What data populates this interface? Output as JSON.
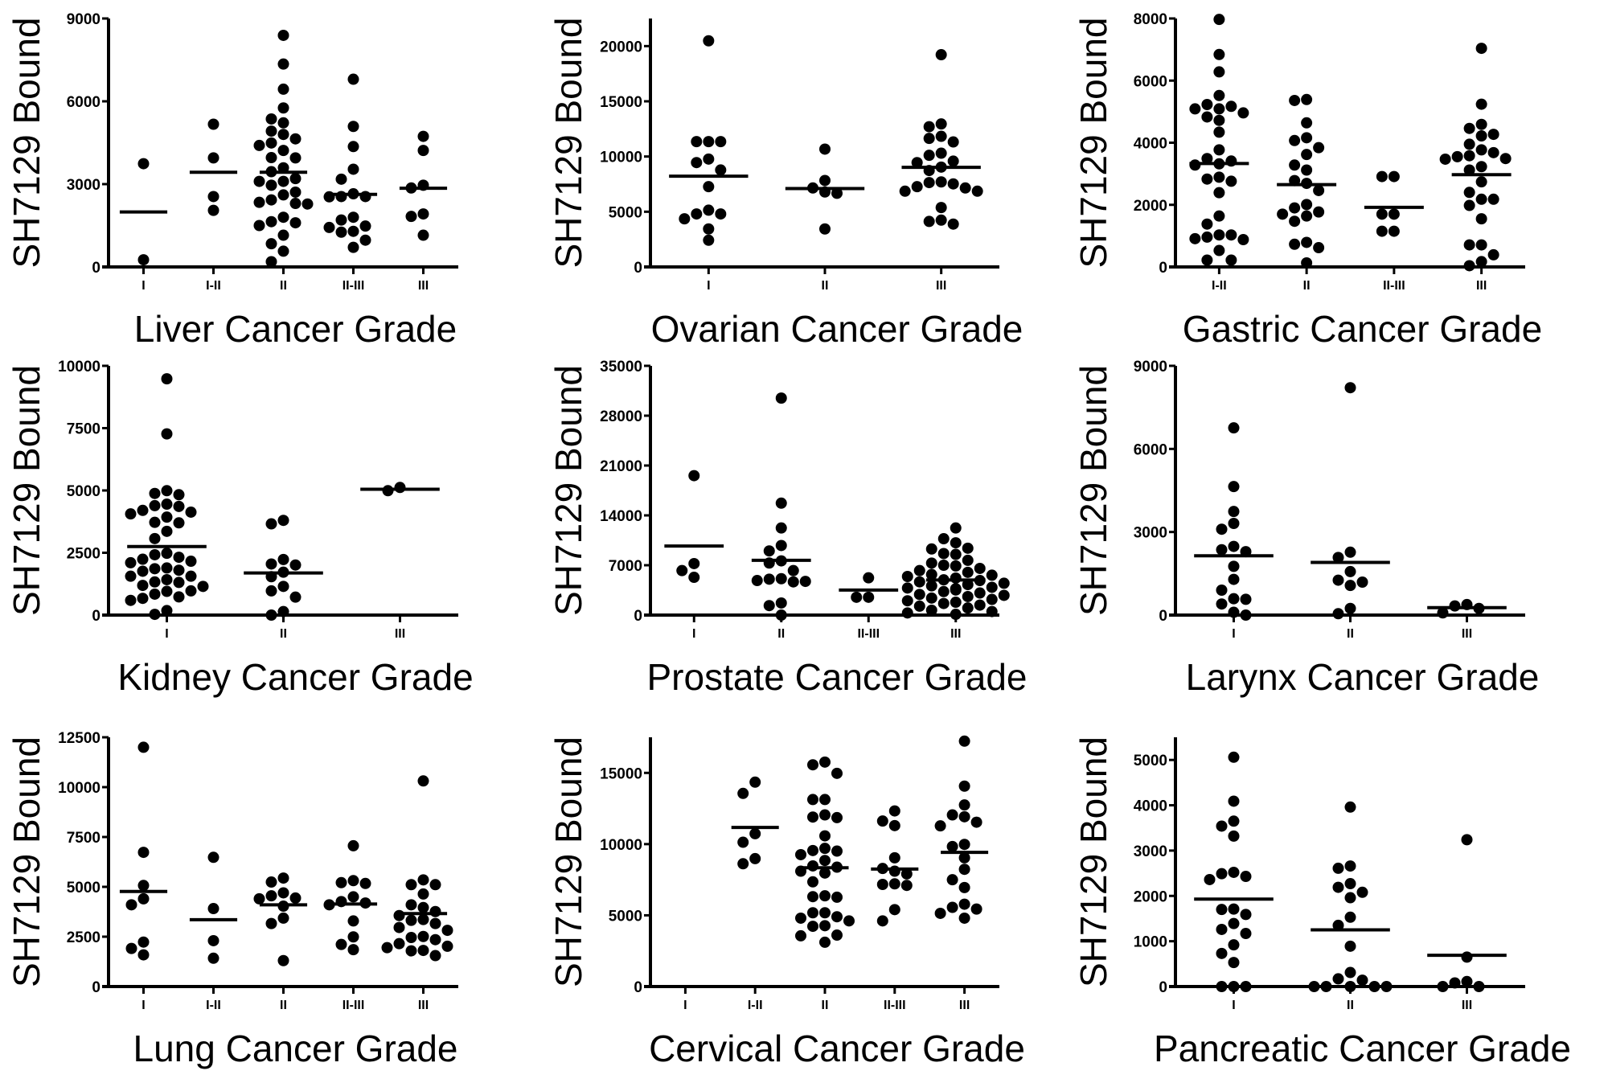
{
  "chart_data": [
    {
      "type": "scatter",
      "xlabel": "Liver Cancer Grade",
      "ylabel": "SH7129 Bound",
      "ylim": [
        0,
        9000
      ],
      "yticks": [
        0,
        3000,
        6000,
        9000
      ],
      "categories": [
        "I",
        "I-II",
        "II",
        "II-III",
        "III"
      ],
      "values": [
        [
          3740,
          260
        ],
        [
          5170,
          3950,
          2550,
          2050
        ],
        [
          8390,
          7350,
          6440,
          5760,
          5360,
          5220,
          4920,
          4800,
          4640,
          4490,
          4400,
          4220,
          3960,
          3950,
          3590,
          3450,
          3200,
          3100,
          3100,
          2960,
          2710,
          2610,
          2430,
          2300,
          2280,
          2340,
          1800,
          1640,
          1600,
          1500,
          1150,
          840,
          570,
          190
        ],
        [
          6800,
          5090,
          4360,
          3540,
          3180,
          2550,
          2550,
          2650,
          2540,
          1800,
          1700,
          1480,
          1430,
          1290,
          1260,
          970,
          710
        ],
        [
          4730,
          4220,
          2960,
          2860,
          1920,
          1830,
          1150
        ]
      ],
      "means": [
        1990,
        3430,
        3430,
        2630,
        2850
      ]
    },
    {
      "type": "scatter",
      "xlabel": "Ovarian Cancer Grade",
      "ylabel": "SH7129 Bound",
      "ylim": [
        0,
        22500
      ],
      "yticks": [
        0,
        5000,
        10000,
        15000,
        20000
      ],
      "categories": [
        "I",
        "II",
        "III"
      ],
      "values": [
        [
          20480,
          11350,
          11350,
          11350,
          9770,
          9450,
          8780,
          7270,
          5140,
          4800,
          4800,
          4360,
          3440,
          2420
        ],
        [
          10670,
          7830,
          7150,
          6790,
          6670,
          3440
        ],
        [
          19220,
          12950,
          12700,
          11830,
          11640,
          11320,
          10110,
          10300,
          9580,
          9450,
          9040,
          8730,
          7520,
          7700,
          7640,
          7150,
          7270,
          6860,
          6860,
          5380,
          4240,
          3880,
          4120
        ]
      ],
      "means": [
        8220,
        7100,
        9020
      ]
    },
    {
      "type": "scatter",
      "xlabel": "Gastric Cancer Grade",
      "ylabel": "SH7129 Bound",
      "ylim": [
        0,
        8000
      ],
      "yticks": [
        0,
        2000,
        4000,
        6000,
        8000
      ],
      "categories": [
        "I-II",
        "II",
        "II-III",
        "III"
      ],
      "values": [
        [
          7970,
          6840,
          6280,
          5520,
          5170,
          5090,
          5230,
          5090,
          4960,
          4830,
          4720,
          4340,
          3770,
          3490,
          3410,
          3320,
          3280,
          2890,
          2760,
          2830,
          2390,
          1640,
          1380,
          1030,
          880,
          910,
          1030,
          960,
          530,
          220,
          220
        ],
        [
          5390,
          5360,
          4640,
          4160,
          4070,
          3840,
          3620,
          3280,
          3120,
          2780,
          2690,
          2460,
          2010,
          1900,
          1700,
          1770,
          1640,
          1470,
          730,
          790,
          620,
          130
        ],
        [
          2910,
          2910,
          1700,
          1700,
          1150,
          1150
        ],
        [
          7040,
          5240,
          4590,
          4460,
          4270,
          4220,
          3950,
          3680,
          3770,
          3580,
          3550,
          3490,
          3470,
          3230,
          3120,
          2740,
          2400,
          2180,
          2180,
          1980,
          1550,
          710,
          710,
          390,
          40,
          170
        ]
      ],
      "means": [
        3330,
        2650,
        1920,
        2970
      ]
    },
    {
      "type": "scatter",
      "xlabel": "Kidney Cancer Grade",
      "ylabel": "SH7129 Bound",
      "ylim": [
        0,
        10000
      ],
      "yticks": [
        0,
        2500,
        5000,
        7500,
        10000
      ],
      "categories": [
        "I",
        "II",
        "III"
      ],
      "values": [
        [
          9480,
          7270,
          4990,
          4880,
          4830,
          4450,
          4390,
          4360,
          4200,
          4130,
          4060,
          3930,
          3700,
          3720,
          3360,
          3070,
          2480,
          2420,
          2320,
          2240,
          2160,
          2100,
          1890,
          1860,
          1800,
          1760,
          1560,
          1560,
          1420,
          1310,
          1330,
          1190,
          1150,
          950,
          970,
          840,
          730,
          670,
          590,
          180,
          30
        ],
        [
          3800,
          3660,
          2230,
          2050,
          2010,
          1720,
          1540,
          1150,
          970,
          720,
          140,
          0
        ],
        [
          4990,
          5120
        ]
      ],
      "means": [
        2750,
        1690,
        5050
      ]
    },
    {
      "type": "scatter",
      "xlabel": "Prostate Cancer Grade",
      "ylabel": "SH7129 Bound",
      "ylim": [
        0,
        35000
      ],
      "yticks": [
        0,
        7000,
        14000,
        21000,
        28000,
        35000
      ],
      "categories": [
        "I",
        "II",
        "II-III",
        "III"
      ],
      "values": [
        [
          19580,
          7230,
          5300,
          6250
        ],
        [
          30470,
          15720,
          12230,
          9770,
          9010,
          7610,
          7310,
          6250,
          5110,
          4850,
          5040,
          4730,
          4660,
          1700,
          1330,
          0
        ],
        [
          5230,
          2500,
          2500
        ],
        [
          12230,
          10720,
          10150,
          9390,
          9280,
          8640,
          8520,
          7690,
          7300,
          6900,
          6550,
          6250,
          6000,
          5700,
          5420,
          5200,
          4850,
          4660,
          4470,
          4280,
          4100,
          3900,
          3700,
          3520,
          3300,
          3100,
          2770,
          2600,
          2390,
          2200,
          2010,
          1800,
          1630,
          1400,
          1250,
          1000,
          680,
          500,
          300,
          110,
          5600,
          4950,
          3800,
          2900,
          7000
        ]
      ],
      "means": [
        9690,
        7690,
        3520,
        4920
      ]
    },
    {
      "type": "scatter",
      "xlabel": "Larynx Cancer Grade",
      "ylabel": "SH7129 Bound",
      "ylim": [
        0,
        9000
      ],
      "yticks": [
        0,
        3000,
        6000,
        9000
      ],
      "categories": [
        "I",
        "II",
        "III"
      ],
      "values": [
        [
          6760,
          4640,
          3740,
          3310,
          3100,
          2480,
          2360,
          2290,
          1760,
          1290,
          900,
          590,
          570,
          400,
          0,
          100
        ],
        [
          8210,
          2270,
          2080,
          1570,
          1260,
          1190,
          1070,
          240,
          50
        ],
        [
          380,
          330,
          240,
          80
        ]
      ],
      "means": [
        2140,
        1900,
        270
      ]
    },
    {
      "type": "scatter",
      "xlabel": "Lung Cancer Grade",
      "ylabel": "SH7129 Bound",
      "ylim": [
        0,
        12500
      ],
      "yticks": [
        0,
        2500,
        5000,
        7500,
        10000,
        12500
      ],
      "categories": [
        "I",
        "I-II",
        "II",
        "II-III",
        "III"
      ],
      "values": [
        [
          12000,
          6730,
          5070,
          4400,
          4100,
          2230,
          1910,
          1590
        ],
        [
          6480,
          3910,
          2300,
          1420
        ],
        [
          5440,
          5240,
          4700,
          4440,
          4550,
          4400,
          4030,
          3430,
          3160,
          1300
        ],
        [
          7060,
          5170,
          5210,
          5310,
          4500,
          4260,
          4100,
          4190,
          3290,
          2490,
          2110,
          1850
        ],
        [
          10310,
          5350,
          5110,
          5110,
          4640,
          4100,
          3960,
          3760,
          3560,
          3320,
          3360,
          3160,
          2960,
          2820,
          2510,
          2460,
          2350,
          2150,
          1950,
          1810,
          1550,
          2020,
          1790
        ]
      ],
      "means": [
        4770,
        3350,
        4100,
        4140,
        3660
      ]
    },
    {
      "type": "scatter",
      "xlabel": "Cervical Cancer Grade",
      "ylabel": "SH7129 Bound",
      "ylim": [
        0,
        17500
      ],
      "yticks": [
        0,
        5000,
        10000,
        15000
      ],
      "categories": [
        "I",
        "I-II",
        "II",
        "II-III",
        "III"
      ],
      "values": [
        [],
        [
          14350,
          13560,
          10730,
          10130,
          8980,
          8620
        ],
        [
          15760,
          15570,
          14970,
          13130,
          13130,
          12050,
          11860,
          11900,
          10580,
          9700,
          9510,
          9550,
          9260,
          8850,
          8470,
          8380,
          8100,
          7970,
          7350,
          6370,
          6310,
          6270,
          5180,
          5180,
          4900,
          4800,
          4610,
          4270,
          4230,
          3610,
          3560,
          3110
        ],
        [
          12330,
          11620,
          11300,
          9040,
          8290,
          8100,
          7910,
          7210,
          7100,
          7170,
          5400,
          4610
        ],
        [
          17230,
          14070,
          12750,
          12050,
          11920,
          11540,
          11280,
          9980,
          9830,
          9040,
          8230,
          7500,
          6950,
          5780,
          5440,
          5560,
          5140,
          4800
        ]
      ],
      "means": [
        null,
        11170,
        8340,
        8250,
        9420
      ]
    },
    {
      "type": "scatter",
      "xlabel": "Pancreatic Cancer Grade",
      "ylabel": "SH7129 Bound",
      "ylim": [
        0,
        5500
      ],
      "yticks": [
        0,
        1000,
        2000,
        3000,
        4000,
        5000
      ],
      "categories": [
        "I",
        "II",
        "III"
      ],
      "values": [
        [
          5060,
          4090,
          3650,
          3540,
          3320,
          2520,
          2430,
          2490,
          2360,
          1710,
          1590,
          1700,
          1390,
          1260,
          1170,
          920,
          730,
          530,
          0,
          0,
          0
        ],
        [
          3960,
          2660,
          2610,
          2190,
          2270,
          2080,
          1960,
          1530,
          1350,
          890,
          310,
          170,
          140,
          0,
          0,
          0,
          0,
          0
        ],
        [
          3240,
          650,
          80,
          0,
          0,
          110
        ]
      ],
      "means": [
        1930,
        1250,
        690
      ]
    }
  ]
}
